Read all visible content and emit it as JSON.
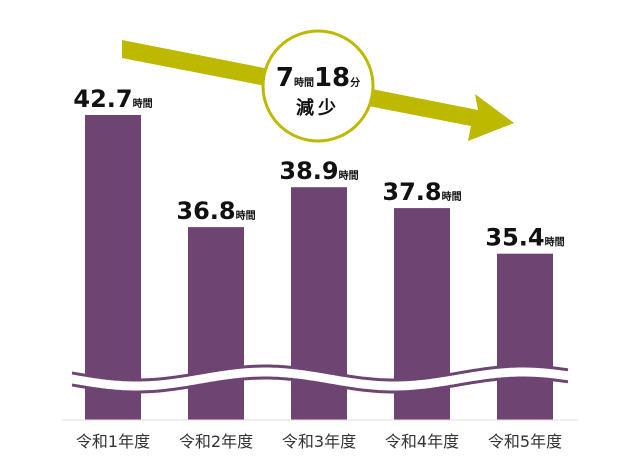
{
  "colors": {
    "bar": "#6e4572",
    "arrow": "#bdb800",
    "badge_border": "#bdb800",
    "wave": "#6e4572",
    "axis": "#dddddd"
  },
  "badge": {
    "hours_value": "7",
    "hours_unit": "時間",
    "minutes_value": "18",
    "minutes_unit": "分",
    "word": "減少"
  },
  "chart_data": {
    "type": "bar",
    "categories": [
      "令和1年度",
      "令和2年度",
      "令和3年度",
      "令和4年度",
      "令和5年度"
    ],
    "values": [
      42.7,
      36.8,
      38.9,
      37.8,
      35.4
    ],
    "value_labels": [
      "42.7",
      "36.8",
      "38.9",
      "37.8",
      "35.4"
    ],
    "value_unit": "時間",
    "axis_break": true,
    "trend_arrow": "decreasing",
    "grid": false,
    "legend": "none"
  }
}
